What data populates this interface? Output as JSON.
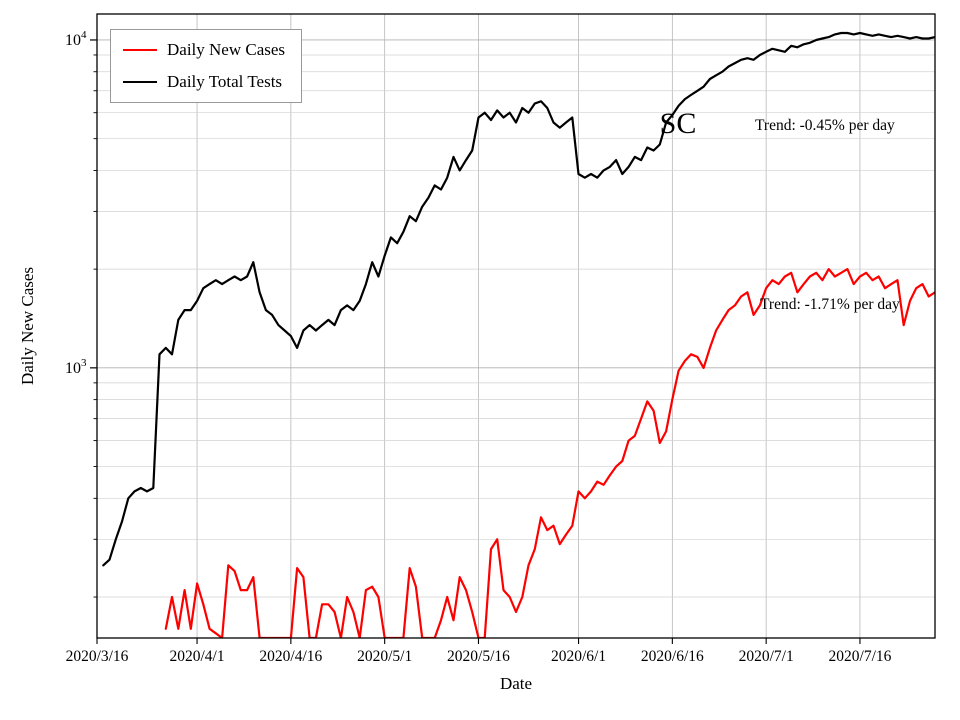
{
  "chart_data": {
    "type": "line",
    "title": "",
    "xlabel": "Date",
    "ylabel": "Daily New Cases",
    "y_scale": "log",
    "ylim": [
      150,
      12000
    ],
    "x_domain_days": [
      0,
      134
    ],
    "x_start_date": "2020/3/16",
    "grid": true,
    "legend_position": "upper left",
    "state_label": "SC",
    "annotations": [
      {
        "text": "Trend: -0.45% per day",
        "series": "Daily Total Tests"
      },
      {
        "text": "Trend: -1.71% per day",
        "series": "Daily New Cases"
      }
    ],
    "x_ticks": [
      {
        "day": 0,
        "label": "2020/3/16"
      },
      {
        "day": 16,
        "label": "2020/4/1"
      },
      {
        "day": 31,
        "label": "2020/4/16"
      },
      {
        "day": 46,
        "label": "2020/5/1"
      },
      {
        "day": 61,
        "label": "2020/5/16"
      },
      {
        "day": 77,
        "label": "2020/6/1"
      },
      {
        "day": 92,
        "label": "2020/6/16"
      },
      {
        "day": 107,
        "label": "2020/7/1"
      },
      {
        "day": 122,
        "label": "2020/7/16"
      }
    ],
    "y_tick_exponents": [
      3,
      4
    ],
    "series": [
      {
        "name": "Daily New Cases",
        "color": "#ff0000",
        "start_day": 11,
        "values": [
          160,
          200,
          160,
          210,
          160,
          220,
          190,
          160,
          155,
          150,
          250,
          240,
          210,
          210,
          230,
          150,
          150,
          150,
          150,
          150,
          150,
          245,
          230,
          150,
          150,
          190,
          190,
          180,
          150,
          200,
          180,
          150,
          210,
          215,
          200,
          150,
          150,
          150,
          150,
          245,
          215,
          150,
          150,
          150,
          170,
          200,
          170,
          230,
          210,
          180,
          150,
          150,
          280,
          300,
          210,
          200,
          180,
          200,
          250,
          280,
          350,
          320,
          330,
          290,
          310,
          330,
          420,
          400,
          420,
          450,
          440,
          470,
          500,
          520,
          600,
          620,
          700,
          790,
          740,
          590,
          640,
          800,
          980,
          1050,
          1100,
          1080,
          1000,
          1150,
          1300,
          1400,
          1500,
          1550,
          1650,
          1700,
          1450,
          1550,
          1750,
          1850,
          1800,
          1900,
          1950,
          1700,
          1800,
          1900,
          1950,
          1850,
          2000,
          1900,
          1950,
          2000,
          1800,
          1900,
          1950,
          1850,
          1900,
          1750,
          1800,
          1850,
          1350,
          1600,
          1750,
          1800,
          1650,
          1700
        ]
      },
      {
        "name": "Daily Total Tests",
        "color": "#000000",
        "start_day": 1,
        "values": [
          250,
          260,
          300,
          340,
          400,
          420,
          430,
          420,
          430,
          1100,
          1150,
          1100,
          1400,
          1500,
          1500,
          1600,
          1750,
          1800,
          1850,
          1800,
          1850,
          1900,
          1850,
          1900,
          2100,
          1700,
          1500,
          1450,
          1350,
          1300,
          1250,
          1150,
          1300,
          1350,
          1300,
          1350,
          1400,
          1350,
          1500,
          1550,
          1500,
          1600,
          1800,
          2100,
          1900,
          2200,
          2500,
          2400,
          2600,
          2900,
          2800,
          3100,
          3300,
          3600,
          3500,
          3800,
          4400,
          4000,
          4300,
          4600,
          5800,
          6000,
          5700,
          6100,
          5800,
          6000,
          5600,
          6200,
          6000,
          6400,
          6500,
          6200,
          5600,
          5400,
          5600,
          5800,
          3900,
          3800,
          3900,
          3800,
          4000,
          4100,
          4300,
          3900,
          4100,
          4400,
          4300,
          4700,
          4600,
          4800,
          5600,
          5900,
          6300,
          6600,
          6800,
          7000,
          7200,
          7600,
          7800,
          8000,
          8300,
          8500,
          8700,
          8800,
          8700,
          9000,
          9200,
          9400,
          9300,
          9200,
          9600,
          9500,
          9700,
          9800,
          10000,
          10100,
          10200,
          10400,
          10500,
          10500,
          10400,
          10500,
          10400,
          10300,
          10400,
          10300,
          10200,
          10300,
          10200,
          10100,
          10200,
          10100,
          10100,
          10200
        ]
      }
    ]
  }
}
